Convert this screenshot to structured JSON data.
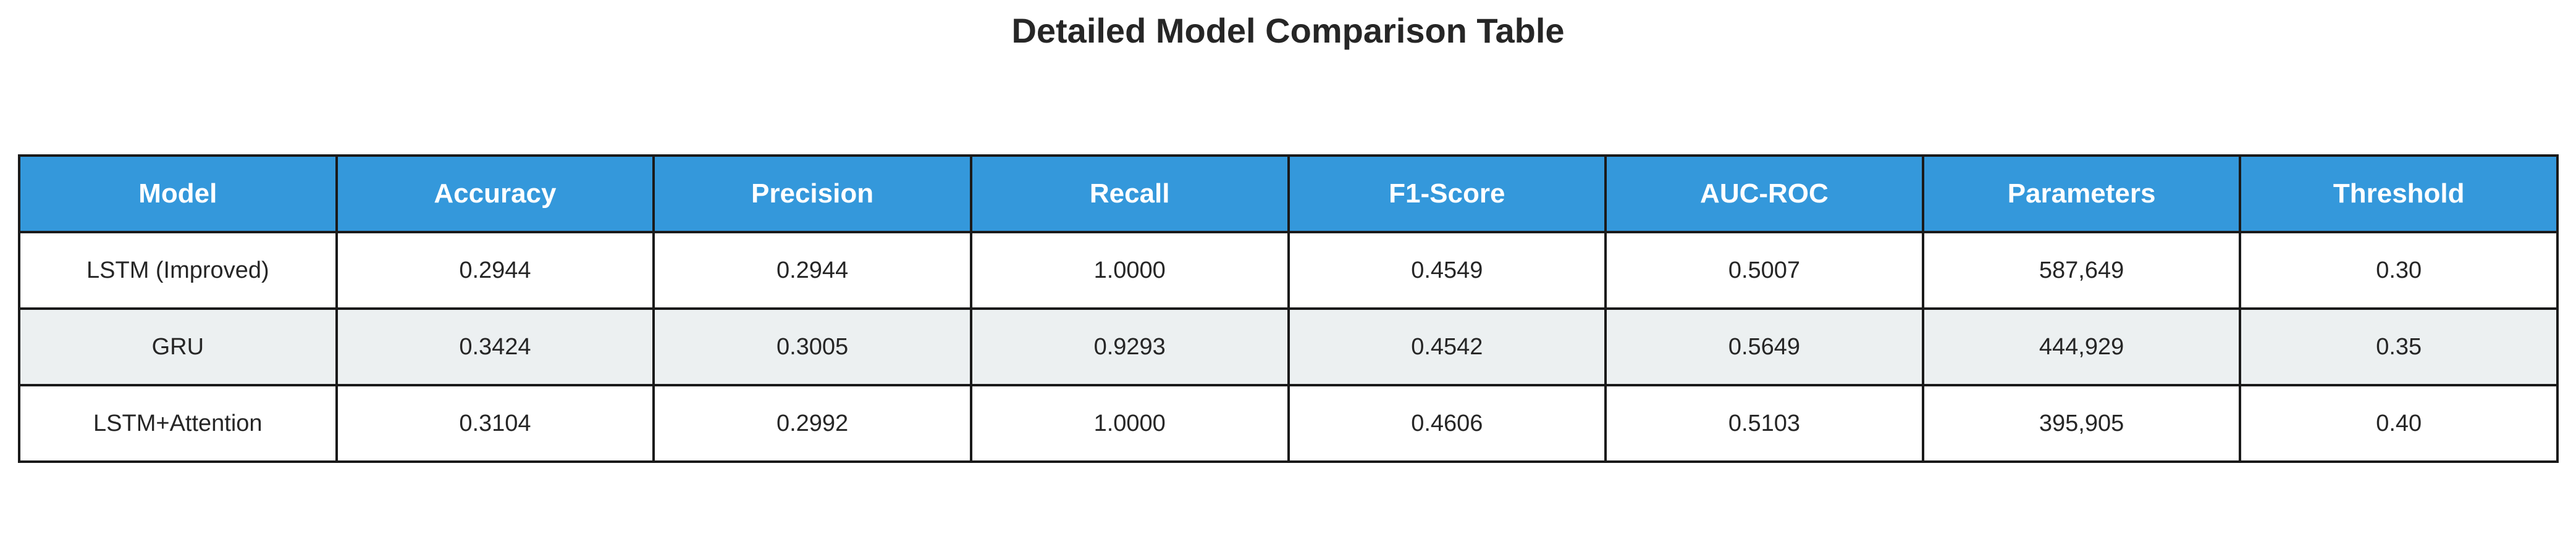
{
  "chart_data": {
    "type": "table",
    "title": "Detailed Model Comparison Table",
    "columns": [
      "Model",
      "Accuracy",
      "Precision",
      "Recall",
      "F1-Score",
      "AUC-ROC",
      "Parameters",
      "Threshold"
    ],
    "rows": [
      [
        "LSTM (Improved)",
        "0.2944",
        "0.2944",
        "1.0000",
        "0.4549",
        "0.5007",
        "587,649",
        "0.30"
      ],
      [
        "GRU",
        "0.3424",
        "0.3005",
        "0.9293",
        "0.4542",
        "0.5649",
        "444,929",
        "0.35"
      ],
      [
        "LSTM+Attention",
        "0.3104",
        "0.2992",
        "1.0000",
        "0.4606",
        "0.5103",
        "395,905",
        "0.40"
      ]
    ],
    "colors": {
      "header_bg": "#3498db",
      "header_text": "#ffffff",
      "row_alt_bg": "#ecf0f1",
      "row_bg": "#ffffff",
      "border": "#1a1a1a"
    }
  }
}
